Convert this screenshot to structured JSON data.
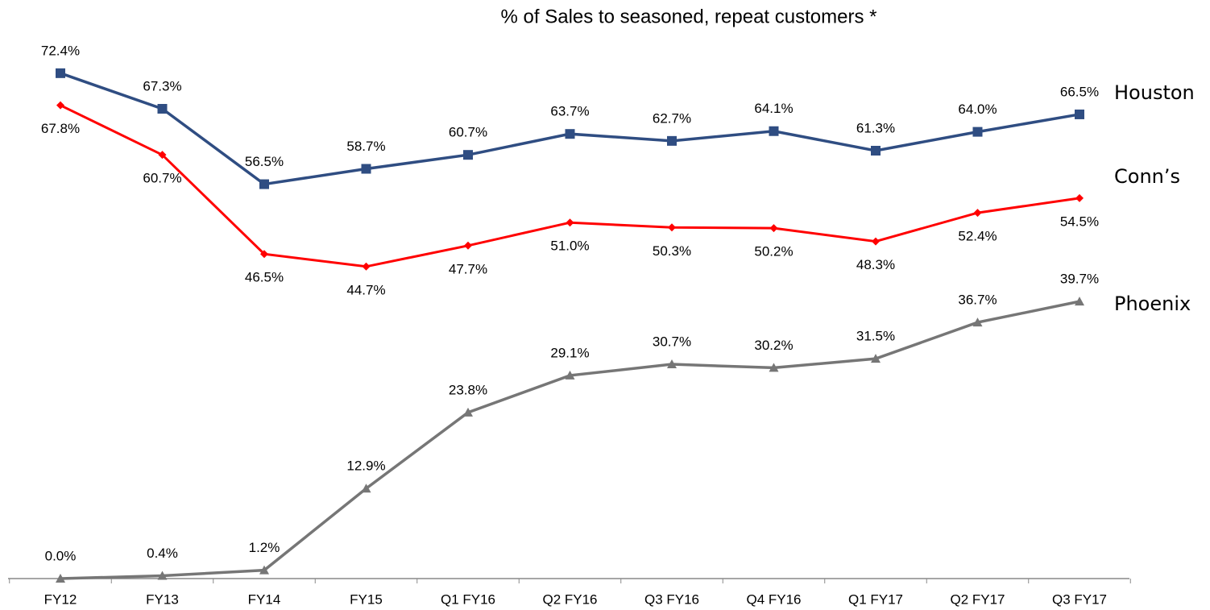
{
  "chart_data": {
    "type": "line",
    "title": "% of Sales to seasoned, repeat customers *",
    "categories": [
      "FY12",
      "FY13",
      "FY14",
      "FY15",
      "Q1 FY16",
      "Q2 FY16",
      "Q3 FY16",
      "Q4 FY16",
      "Q1 FY17",
      "Q2 FY17",
      "Q3 FY17"
    ],
    "ylim": [
      0,
      80
    ],
    "series": [
      {
        "name": "Houston",
        "color": "#2f4d82",
        "marker": "square",
        "values": [
          72.4,
          67.3,
          56.5,
          58.7,
          60.7,
          63.7,
          62.7,
          64.1,
          61.3,
          64.0,
          66.5
        ],
        "value_labels": [
          "72.4%",
          "67.3%",
          "56.5%",
          "58.7%",
          "60.7%",
          "63.7%",
          "62.7%",
          "64.1%",
          "61.3%",
          "64.0%",
          "66.5%"
        ]
      },
      {
        "name": "Conn’s",
        "color": "#ff0000",
        "marker": "diamond",
        "values": [
          67.8,
          60.7,
          46.5,
          44.7,
          47.7,
          51.0,
          50.3,
          50.2,
          48.3,
          52.4,
          54.5
        ],
        "value_labels": [
          "67.8%",
          "60.7%",
          "46.5%",
          "44.7%",
          "47.7%",
          "51.0%",
          "50.3%",
          "50.2%",
          "48.3%",
          "52.4%",
          "54.5%"
        ]
      },
      {
        "name": "Phoenix",
        "color": "#767676",
        "marker": "triangle",
        "values": [
          0.0,
          0.4,
          1.2,
          12.9,
          23.8,
          29.1,
          30.7,
          30.2,
          31.5,
          36.7,
          39.7
        ],
        "value_labels": [
          "0.0%",
          "0.4%",
          "1.2%",
          "12.9%",
          "23.8%",
          "29.1%",
          "30.7%",
          "30.2%",
          "31.5%",
          "36.7%",
          "39.7%"
        ]
      }
    ]
  }
}
